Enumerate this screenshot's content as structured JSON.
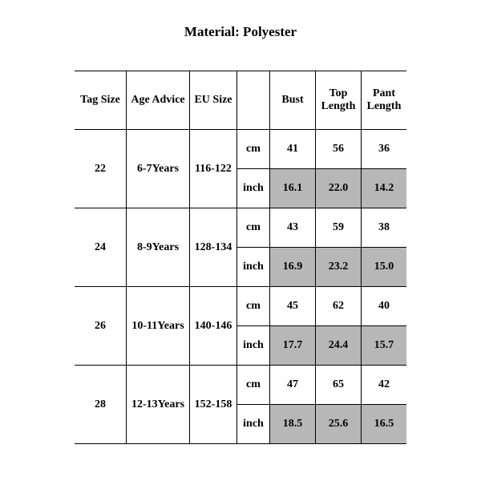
{
  "title": "Material: Polyester",
  "columns": {
    "tag": "Tag Size",
    "age": "Age Advice",
    "eu": "EU Size",
    "unit": "",
    "bust": "Bust",
    "top": "Top Length",
    "pant": "Pant Length"
  },
  "units": {
    "cm": "cm",
    "inch": "inch"
  },
  "rows": [
    {
      "tag": "22",
      "age": "6-7Years",
      "eu": "116-122",
      "cm": {
        "bust": "41",
        "top": "56",
        "pant": "36"
      },
      "inch": {
        "bust": "16.1",
        "top": "22.0",
        "pant": "14.2"
      }
    },
    {
      "tag": "24",
      "age": "8-9Years",
      "eu": "128-134",
      "cm": {
        "bust": "43",
        "top": "59",
        "pant": "38"
      },
      "inch": {
        "bust": "16.9",
        "top": "23.2",
        "pant": "15.0"
      }
    },
    {
      "tag": "26",
      "age": "10-11Years",
      "eu": "140-146",
      "cm": {
        "bust": "45",
        "top": "62",
        "pant": "40"
      },
      "inch": {
        "bust": "17.7",
        "top": "24.4",
        "pant": "15.7"
      }
    },
    {
      "tag": "28",
      "age": "12-13Years",
      "eu": "152-158",
      "cm": {
        "bust": "47",
        "top": "65",
        "pant": "42"
      },
      "inch": {
        "bust": "18.5",
        "top": "25.6",
        "pant": "16.5"
      }
    }
  ],
  "style": {
    "shade_bg": "#b7b7b7",
    "border": "#000000",
    "bg": "#ffffff",
    "font": "Times New Roman",
    "header_fontsize": 14,
    "title_fontsize": 17
  }
}
